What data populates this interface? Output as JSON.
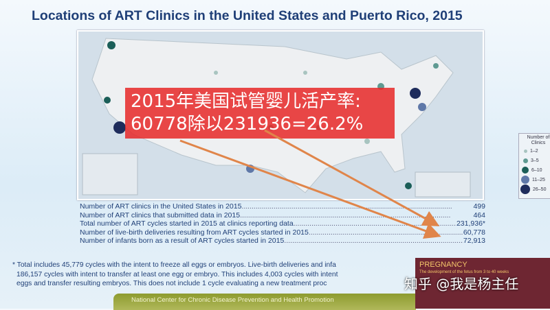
{
  "title": "Locations of ART Clinics in the United States and Puerto Rico, 2015",
  "legend": {
    "title": "Number of Clinics",
    "items": [
      {
        "label": "1–2",
        "color": "#a8c4c0"
      },
      {
        "label": "3–5",
        "color": "#5f9a92"
      },
      {
        "label": "6–10",
        "color": "#1b5e58"
      },
      {
        "label": "11–25",
        "color": "#5f78a8"
      },
      {
        "label": "26–50",
        "color": "#1e2c5c"
      }
    ]
  },
  "overlay": {
    "line1": "2015年美国试管婴儿活产率:",
    "line2": "60778除以231936=26.2%",
    "color": "#e62828"
  },
  "stats": [
    {
      "label": "Number of ART clinics in the United States in 2015",
      "value": "499"
    },
    {
      "label": "Number of ART clinics that submitted data in 2015",
      "value": "464"
    },
    {
      "label": "Total number of ART cycles started in 2015 at clinics reporting data",
      "value": "231,936*"
    },
    {
      "label": "Number of live-birth deliveries resulting from ART cycles started in 2015",
      "value": "60,778"
    },
    {
      "label": "Number of infants born as a result of ART cycles started in 2015",
      "value": "72,913"
    }
  ],
  "footnote": [
    "* Total includes 45,779 cycles with the intent to freeze all eggs or embryos. Live-birth deliveries and infa",
    "186,157 cycles with intent to transfer at least one egg or embryo. This includes 4,003 cycles with intent",
    "eggs and transfer resulting embryos. This does not include 1 cycle evaluating a new treatment proc"
  ],
  "banner": "National Center for Chronic Disease Prevention and Health Promotion",
  "pregnancy": {
    "title": "PREGNANCY",
    "subtitle": "The development of the fetus from 3 to 40 weeks"
  },
  "watermark": "知乎 @我是杨主任"
}
